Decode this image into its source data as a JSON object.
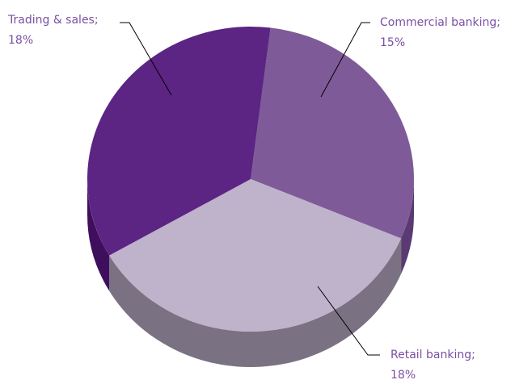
{
  "chart_data": {
    "type": "pie",
    "categories": [
      "Commercial banking;",
      "Retail banking;",
      "Trading & sales;"
    ],
    "values": [
      15,
      18,
      18
    ],
    "value_labels": [
      "15%",
      "18%",
      "18%"
    ],
    "colors": [
      "#7e5b98",
      "#bfb2cb",
      "#5c2483"
    ],
    "side_colors": [
      "#5a3a72",
      "#7a7282",
      "#3f0f5e"
    ]
  }
}
